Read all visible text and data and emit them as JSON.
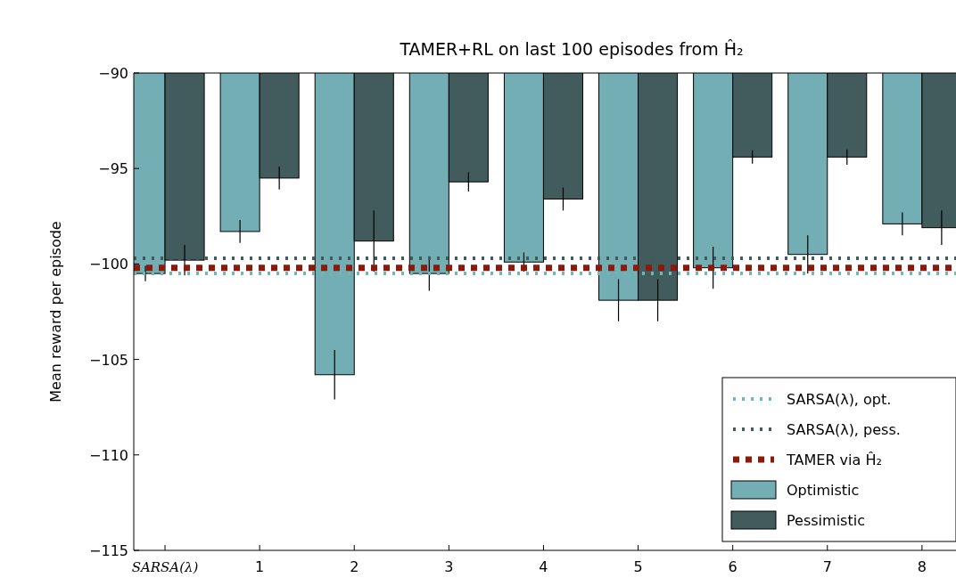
{
  "chart_data": {
    "type": "bar",
    "title": "TAMER+RL on last 100 episodes from Ĥ₂",
    "ylabel": "Mean reward per episode",
    "categories": [
      "SARSA(λ)",
      "1",
      "2",
      "3",
      "4",
      "5",
      "6",
      "7",
      "8"
    ],
    "series": [
      {
        "name": "Optimistic",
        "color": "#72aeb3",
        "values": [
          -100.5,
          -98.3,
          -105.8,
          -100.5,
          -99.9,
          -101.9,
          -100.2,
          -99.5,
          -97.9
        ],
        "errors": [
          0.4,
          0.6,
          1.3,
          0.9,
          0.5,
          1.1,
          1.1,
          1.0,
          0.6
        ]
      },
      {
        "name": "Pessimistic",
        "color": "#425b5c",
        "values": [
          -99.8,
          -95.5,
          -98.8,
          -95.7,
          -96.6,
          -101.9,
          -94.4,
          -94.4,
          -98.1
        ],
        "errors": [
          0.8,
          0.6,
          1.6,
          0.5,
          0.6,
          1.1,
          0.35,
          0.4,
          0.9
        ]
      }
    ],
    "ylim": [
      -115,
      -90
    ],
    "yticks": [
      {
        "value": -115,
        "label": "−115"
      },
      {
        "value": -110,
        "label": "−110"
      },
      {
        "value": -105,
        "label": "−105"
      },
      {
        "value": -100,
        "label": "−100"
      },
      {
        "value": -95,
        "label": "−95"
      },
      {
        "value": -90,
        "label": "−90"
      }
    ],
    "ref_lines": [
      {
        "axis": "y",
        "value": -100.5,
        "label": "SARSA(λ), opt.",
        "color": "#6cb8bc",
        "line_style": "dotted"
      },
      {
        "axis": "y",
        "value": -99.7,
        "label": "SARSA(λ), pess.",
        "color": "#3f5c5c",
        "line_style": "dotted"
      },
      {
        "axis": "y",
        "value": -100.2,
        "label": "TAMER via Ĥ₂",
        "color": "#8b1a0a",
        "line_style": "dashed"
      }
    ],
    "legend": "bottom right"
  }
}
